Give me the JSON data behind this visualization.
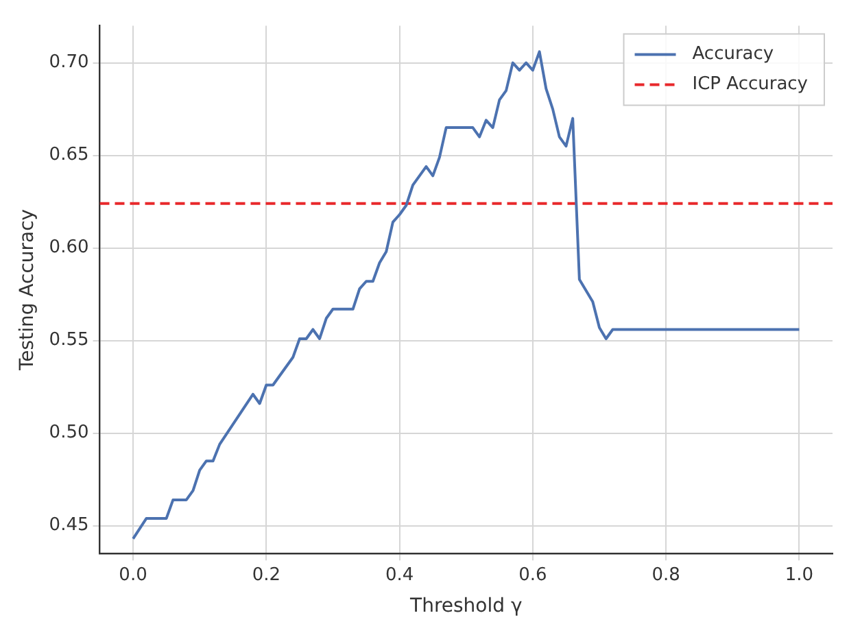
{
  "chart_data": {
    "type": "line",
    "xlabel": "Threshold γ",
    "ylabel": "Testing Accuracy",
    "xlim": [
      -0.05,
      1.05
    ],
    "xticks": [
      {
        "value": 0,
        "label": "0.0"
      },
      {
        "value": 0.2,
        "label": "0.2"
      },
      {
        "value": 0.4,
        "label": "0.4"
      },
      {
        "value": 0.6,
        "label": "0.6"
      },
      {
        "value": 0.8,
        "label": "0.8"
      },
      {
        "value": 1,
        "label": "1.0"
      }
    ],
    "ylim": [
      0.435,
      0.72
    ],
    "yticks": [
      {
        "value": 0.45,
        "label": "0.45"
      },
      {
        "value": 0.5,
        "label": "0.50"
      },
      {
        "value": 0.55,
        "label": "0.55"
      },
      {
        "value": 0.6,
        "label": "0.60"
      },
      {
        "value": 0.65,
        "label": "0.65"
      },
      {
        "value": 0.7,
        "label": "0.70"
      }
    ],
    "grid": true,
    "legend": "top right",
    "line_style": "solid",
    "marker": "none",
    "series": [
      {
        "name": "Accuracy",
        "color": "#4c72b0",
        "x": [
          0,
          0.02,
          0.05,
          0.06,
          0.08,
          0.09,
          0.1,
          0.11,
          0.12,
          0.13,
          0.18,
          0.19,
          0.2,
          0.21,
          0.24,
          0.25,
          0.26,
          0.27,
          0.28,
          0.29,
          0.3,
          0.33,
          0.34,
          0.35,
          0.36,
          0.37,
          0.38,
          0.39,
          0.4,
          0.41,
          0.42,
          0.43,
          0.44,
          0.45,
          0.46,
          0.47,
          0.51,
          0.52,
          0.53,
          0.54,
          0.55,
          0.56,
          0.57,
          0.58,
          0.59,
          0.6,
          0.61,
          0.62,
          0.63,
          0.64,
          0.65,
          0.66,
          0.67,
          0.68,
          0.69,
          0.7,
          0.71,
          0.72,
          1.0
        ],
        "values": [
          0.443,
          0.454,
          0.454,
          0.464,
          0.464,
          0.469,
          0.48,
          0.485,
          0.485,
          0.494,
          0.521,
          0.516,
          0.526,
          0.526,
          0.541,
          0.551,
          0.551,
          0.556,
          0.551,
          0.562,
          0.567,
          0.567,
          0.578,
          0.582,
          0.582,
          0.592,
          0.598,
          0.614,
          0.618,
          0.623,
          0.634,
          0.639,
          0.644,
          0.639,
          0.649,
          0.665,
          0.665,
          0.66,
          0.669,
          0.665,
          0.68,
          0.685,
          0.7,
          0.696,
          0.7,
          0.696,
          0.706,
          0.686,
          0.675,
          0.66,
          0.655,
          0.67,
          0.583,
          0.577,
          0.571,
          0.557,
          0.551,
          0.556,
          0.556
        ]
      }
    ],
    "ref_lines": [
      {
        "axis": "y",
        "value": 0.624,
        "label": "ICP Accuracy",
        "color": "#e8282b",
        "line_style": "dashed"
      }
    ]
  }
}
